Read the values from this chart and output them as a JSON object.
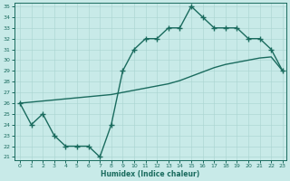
{
  "xlabel": "Humidex (Indice chaleur)",
  "ylabel": "",
  "bg_color": "#c8eae8",
  "line_color": "#1a6b5e",
  "grid_color": "#a8d4d0",
  "xlim": [
    -0.5,
    23.3
  ],
  "ylim": [
    20.7,
    35.3
  ],
  "xticks": [
    0,
    1,
    2,
    3,
    4,
    5,
    6,
    7,
    8,
    9,
    10,
    11,
    12,
    13,
    14,
    15,
    16,
    17,
    18,
    19,
    20,
    21,
    22,
    23
  ],
  "yticks": [
    21,
    22,
    23,
    24,
    25,
    26,
    27,
    28,
    29,
    30,
    31,
    32,
    33,
    34,
    35
  ],
  "curve1_x": [
    0,
    1,
    2,
    3,
    4,
    5,
    6,
    7,
    8,
    9,
    10,
    11,
    12,
    13,
    14,
    15,
    16,
    17,
    18,
    19,
    20,
    21,
    22,
    23
  ],
  "curve1_y": [
    26,
    24,
    25,
    23,
    22,
    22,
    22,
    21,
    24,
    29,
    31,
    32,
    32,
    33,
    33,
    35,
    34,
    33,
    33,
    33,
    32,
    32,
    31,
    29
  ],
  "curve2_x": [
    0,
    1,
    2,
    3,
    4,
    5,
    6,
    7,
    8,
    9,
    10,
    11,
    12,
    13,
    14,
    15,
    16,
    17,
    18,
    19,
    20,
    21,
    22,
    23
  ],
  "curve2_y": [
    26.0,
    26.1,
    26.2,
    26.3,
    26.4,
    26.5,
    26.6,
    26.7,
    26.8,
    27.0,
    27.2,
    27.4,
    27.6,
    27.8,
    28.1,
    28.5,
    28.9,
    29.3,
    29.6,
    29.8,
    30.0,
    30.2,
    30.3,
    29.0
  ],
  "marker": "+",
  "markersize": 4,
  "linewidth": 1.0
}
